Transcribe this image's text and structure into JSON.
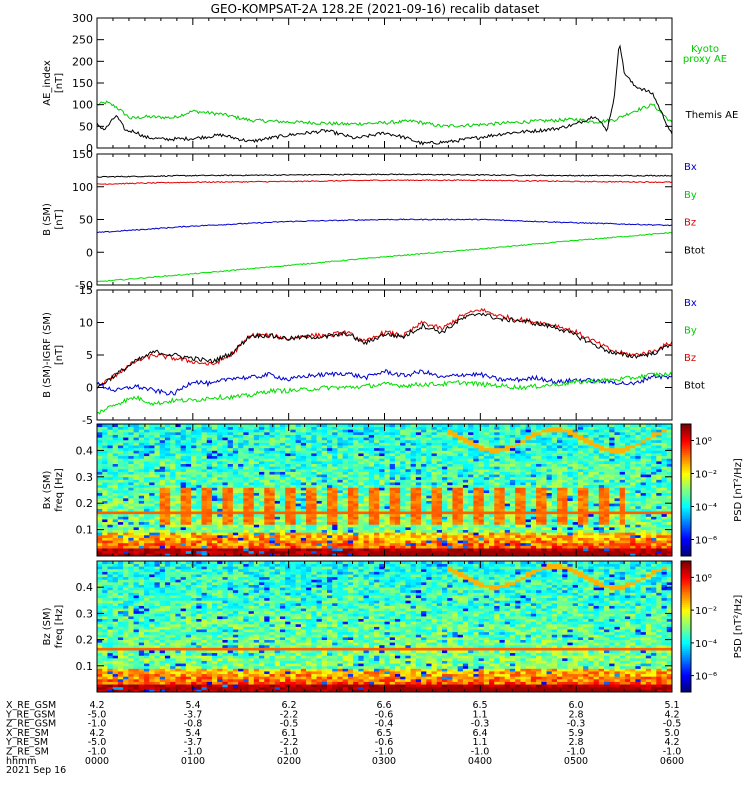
{
  "title": "GEO-KOMPSAT-2A 128.2E (2021-09-16) recalib dataset",
  "colors": {
    "black": "#000000",
    "red": "#e00000",
    "green": "#00dd00",
    "blue": "#0000cc",
    "kyoto": "#00cc00"
  },
  "chart_data": [
    {
      "type": "line",
      "ylabel_lines": [
        "AE_index",
        "[nT]"
      ],
      "ylim": [
        0,
        300
      ],
      "yticks": [
        "0",
        "50",
        "100",
        "150",
        "200",
        "250",
        "300"
      ],
      "xlim": [
        0,
        6
      ],
      "legend": [
        {
          "text": "Kyoto",
          "color": "#00cc00"
        },
        {
          "text": "proxy AE",
          "color": "#00cc00"
        },
        {
          "text": "Themis AE",
          "color": "#000000"
        }
      ],
      "series": [
        {
          "name": "Kyoto proxy AE",
          "color": "#00cc00",
          "x": [
            0,
            0.1,
            0.2,
            0.35,
            0.5,
            0.8,
            1.0,
            1.3,
            1.6,
            2.0,
            2.3,
            2.6,
            3.0,
            3.3,
            3.6,
            4.0,
            4.3,
            4.6,
            5.0,
            5.2,
            5.4,
            5.6,
            5.8,
            6.0
          ],
          "y": [
            100,
            105,
            95,
            68,
            72,
            70,
            85,
            78,
            64,
            60,
            58,
            55,
            58,
            62,
            50,
            54,
            58,
            62,
            66,
            60,
            65,
            85,
            100,
            58
          ]
        },
        {
          "name": "Themis AE",
          "color": "#000000",
          "x": [
            0,
            0.08,
            0.2,
            0.3,
            0.4,
            0.5,
            0.7,
            1.0,
            1.3,
            1.6,
            2.0,
            2.4,
            2.7,
            3.0,
            3.2,
            3.4,
            3.7,
            4.0,
            4.3,
            4.6,
            4.8,
            5.0,
            5.2,
            5.32,
            5.4,
            5.45,
            5.5,
            5.6,
            5.8,
            6.0
          ],
          "y": [
            55,
            42,
            75,
            40,
            38,
            25,
            20,
            22,
            30,
            15,
            30,
            40,
            22,
            35,
            25,
            10,
            15,
            25,
            35,
            40,
            45,
            55,
            75,
            40,
            120,
            250,
            175,
            145,
            125,
            30
          ]
        }
      ]
    },
    {
      "type": "line",
      "ylabel_lines": [
        "B (SM)",
        "[nT]"
      ],
      "ylim": [
        -50,
        150
      ],
      "yticks": [
        "-50",
        "0",
        "50",
        "100",
        "150"
      ],
      "xlim": [
        0,
        6
      ],
      "legend": [
        {
          "text": "Bx",
          "color": "#0000cc"
        },
        {
          "text": "By",
          "color": "#00cc00"
        },
        {
          "text": "Bz",
          "color": "#e00000"
        },
        {
          "text": "Btot",
          "color": "#000000"
        }
      ],
      "series": [
        {
          "name": "Btot",
          "color": "#000000",
          "x": [
            0,
            1,
            2,
            3,
            4,
            5,
            6
          ],
          "y": [
            115,
            117,
            118,
            119,
            118,
            117,
            117
          ]
        },
        {
          "name": "Bz",
          "color": "#e00000",
          "x": [
            0,
            1,
            2,
            3,
            4,
            5,
            6
          ],
          "y": [
            104,
            107,
            108,
            110,
            110,
            108,
            107
          ]
        },
        {
          "name": "Bx",
          "color": "#0000cc",
          "x": [
            0,
            1,
            2,
            3,
            4,
            5,
            6
          ],
          "y": [
            30,
            40,
            47,
            50,
            50,
            45,
            41
          ]
        },
        {
          "name": "By",
          "color": "#00dd00",
          "x": [
            0,
            1,
            2,
            3,
            4,
            5,
            6
          ],
          "y": [
            -45,
            -33,
            -20,
            -7,
            5,
            18,
            30
          ]
        }
      ]
    },
    {
      "type": "line",
      "ylabel_lines": [
        "B (SM)-IGRF (SM)",
        "[nT]"
      ],
      "ylim": [
        -5,
        15
      ],
      "yticks": [
        "-5",
        "0",
        "5",
        "10",
        "15"
      ],
      "xlim": [
        0,
        6
      ],
      "legend": [
        {
          "text": "Bx",
          "color": "#0000cc"
        },
        {
          "text": "By",
          "color": "#00cc00"
        },
        {
          "text": "Bz",
          "color": "#e00000"
        },
        {
          "text": "Btot",
          "color": "#000000"
        }
      ],
      "series": [
        {
          "name": "Bz",
          "color": "#e00000",
          "x": [
            0,
            0.2,
            0.4,
            0.6,
            0.8,
            1.0,
            1.2,
            1.4,
            1.6,
            1.8,
            2.0,
            2.2,
            2.4,
            2.6,
            2.8,
            3.0,
            3.2,
            3.4,
            3.6,
            3.8,
            4.0,
            4.2,
            4.4,
            4.6,
            4.8,
            5.0,
            5.2,
            5.4,
            5.6,
            5.8,
            6.0
          ],
          "y": [
            0,
            2,
            4,
            5,
            4.5,
            4,
            3.5,
            5,
            8,
            8,
            7.5,
            8,
            8,
            8.5,
            7,
            8.5,
            8,
            10,
            9,
            11,
            12,
            11,
            10.5,
            10,
            9.5,
            8.5,
            7,
            5.5,
            5,
            5.5,
            7
          ]
        },
        {
          "name": "Btot",
          "color": "#000000",
          "x": [
            0,
            0.2,
            0.4,
            0.6,
            0.8,
            1.0,
            1.2,
            1.4,
            1.6,
            1.8,
            2.0,
            2.2,
            2.4,
            2.6,
            2.8,
            3.0,
            3.2,
            3.4,
            3.6,
            3.8,
            4.0,
            4.2,
            4.4,
            4.6,
            4.8,
            5.0,
            5.2,
            5.4,
            5.6,
            5.8,
            6.0
          ],
          "y": [
            0,
            2,
            4,
            5.5,
            5,
            4.5,
            4,
            5.2,
            8,
            8,
            7.5,
            7.8,
            7.8,
            8.3,
            6.8,
            8.2,
            7.8,
            9.5,
            8.5,
            10.5,
            11.5,
            10.5,
            10.3,
            9.8,
            9.2,
            8,
            6.5,
            5.2,
            4.8,
            5.2,
            6.8
          ]
        },
        {
          "name": "Bx",
          "color": "#0000cc",
          "x": [
            0,
            0.2,
            0.4,
            0.6,
            0.8,
            1.0,
            1.2,
            1.4,
            1.6,
            1.8,
            2.0,
            2.2,
            2.4,
            2.6,
            2.8,
            3.0,
            3.2,
            3.4,
            3.6,
            3.8,
            4.0,
            4.2,
            4.4,
            4.6,
            4.8,
            5.0,
            5.2,
            5.4,
            5.6,
            5.8,
            6.0
          ],
          "y": [
            0.5,
            -0.5,
            0.2,
            -0.5,
            -1,
            1,
            0.5,
            1.5,
            1.5,
            2,
            1.2,
            1.8,
            2,
            2.2,
            1.5,
            2.5,
            1.8,
            2.5,
            1.5,
            2,
            2,
            1.2,
            1.2,
            1.5,
            0.8,
            1.2,
            1,
            0.8,
            0.5,
            1.8,
            1.5
          ]
        },
        {
          "name": "By",
          "color": "#00dd00",
          "x": [
            0,
            0.2,
            0.4,
            0.6,
            0.8,
            1.0,
            1.2,
            1.4,
            1.6,
            1.8,
            2.0,
            2.2,
            2.4,
            2.6,
            2.8,
            3.0,
            3.2,
            3.4,
            3.6,
            3.8,
            4.0,
            4.2,
            4.4,
            4.6,
            4.8,
            5.0,
            5.2,
            5.4,
            5.6,
            5.8,
            6.0
          ],
          "y": [
            -4,
            -2.5,
            -1.5,
            -2.5,
            -2,
            -2,
            -1.5,
            -1.5,
            -1.2,
            -0.5,
            -0.5,
            -0.3,
            0,
            0,
            0.2,
            0.5,
            0.3,
            0.5,
            0.5,
            0.8,
            0.5,
            0.3,
            0,
            0.2,
            0.5,
            0.8,
            1,
            1.2,
            1.5,
            2,
            2
          ]
        }
      ]
    },
    {
      "type": "heatmap",
      "ylabel_lines": [
        "Bx (SM)",
        "freq [Hz]"
      ],
      "ylim": [
        0,
        0.5
      ],
      "yticks": [
        "0.1",
        "0.2",
        "0.3",
        "0.4"
      ],
      "xlim": [
        0,
        6
      ],
      "colorbar": {
        "label": "PSD [nT²/Hz]",
        "ticks": [
          "10⁰",
          "10⁻²",
          "10⁻⁴",
          "10⁻⁶"
        ],
        "log_range": [
          -7,
          1
        ]
      }
    },
    {
      "type": "heatmap",
      "ylabel_lines": [
        "Bz (SM)",
        "freq [Hz]"
      ],
      "ylim": [
        0,
        0.5
      ],
      "yticks": [
        "0.1",
        "0.2",
        "0.3",
        "0.4"
      ],
      "xlim": [
        0,
        6
      ],
      "colorbar": {
        "label": "PSD [nT²/Hz]",
        "ticks": [
          "10⁰",
          "10⁻²",
          "10⁻⁴",
          "10⁻⁶"
        ],
        "log_range": [
          -7,
          1
        ]
      }
    }
  ],
  "ephemeris": {
    "rows": [
      {
        "label": "X_RE_GSM",
        "values": [
          "4.2",
          "5.4",
          "6.2",
          "6.6",
          "6.5",
          "6.0",
          "5.1"
        ]
      },
      {
        "label": "Y_RE_GSM",
        "values": [
          "-5.0",
          "-3.7",
          "-2.2",
          "-0.6",
          "1.1",
          "2.8",
          "4.2"
        ]
      },
      {
        "label": "Z_RE_GSM",
        "values": [
          "-1.0",
          "-0.8",
          "-0.5",
          "-0.4",
          "-0.3",
          "-0.3",
          "-0.5"
        ]
      },
      {
        "label": "X_RE_SM",
        "values": [
          "4.2",
          "5.4",
          "6.1",
          "6.5",
          "6.4",
          "5.9",
          "5.0"
        ]
      },
      {
        "label": "Y_RE_SM",
        "values": [
          "-5.0",
          "-3.7",
          "-2.2",
          "-0.6",
          "1.1",
          "2.8",
          "4.2"
        ]
      },
      {
        "label": "Z_RE_SM",
        "values": [
          "-1.0",
          "-1.0",
          "-1.0",
          "-1.0",
          "-1.0",
          "-1.0",
          "-1.0"
        ]
      },
      {
        "label": "hhmm",
        "values": [
          "0000",
          "0100",
          "0200",
          "0300",
          "0400",
          "0500",
          "0600"
        ]
      }
    ],
    "date": "2021 Sep 16"
  }
}
